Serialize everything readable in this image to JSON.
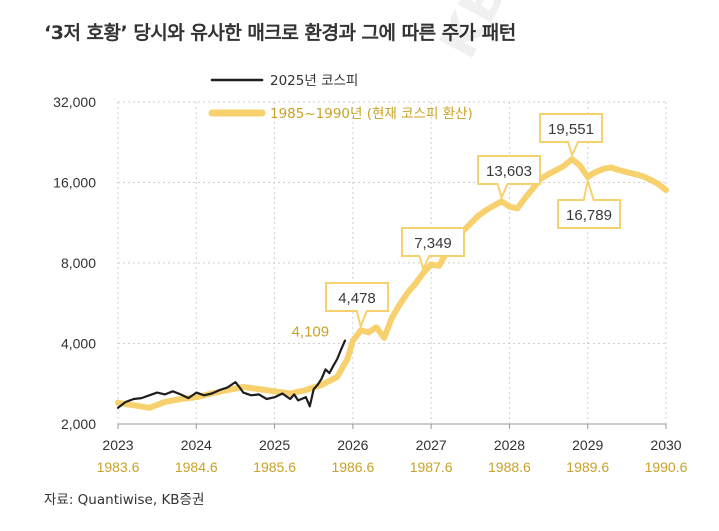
{
  "title": "‘3저 호황’ 당시와 유사한 매크로 환경과 그에 따른 주가 패턴",
  "source": "자료: Quantiwise, KB증권",
  "watermark": "KB증",
  "colors": {
    "kospi2025": "#1e1e1e",
    "kospi1985": "#f7d16e",
    "accent": "#c9a227",
    "grid": "#cfcfcf"
  },
  "chart_data": {
    "type": "line",
    "y_scale": "log",
    "ylim": [
      2000,
      32000
    ],
    "y_ticks": [
      2000,
      4000,
      8000,
      16000,
      32000
    ],
    "y_tick_labels": [
      "2,000",
      "4,000",
      "8,000",
      "16,000",
      "32,000"
    ],
    "xlim": [
      2023,
      2030
    ],
    "x_ticks": [
      2023,
      2024,
      2025,
      2026,
      2027,
      2028,
      2029,
      2030
    ],
    "x_tick_labels": [
      "2023",
      "2024",
      "2025",
      "2026",
      "2027",
      "2028",
      "2029",
      "2030"
    ],
    "x_tick_labels_secondary": [
      "1983.6",
      "1984.6",
      "1985.6",
      "1986.6",
      "1987.6",
      "1988.6",
      "1989.6",
      "1990.6"
    ],
    "legend_position": "top-left",
    "series": [
      {
        "name": "2025년 코스피",
        "x": [
          2023.0,
          2023.1,
          2023.2,
          2023.3,
          2023.4,
          2023.5,
          2023.6,
          2023.7,
          2023.8,
          2023.9,
          2024.0,
          2024.1,
          2024.2,
          2024.3,
          2024.4,
          2024.5,
          2024.55,
          2024.6,
          2024.7,
          2024.8,
          2024.9,
          2025.0,
          2025.1,
          2025.2,
          2025.25,
          2025.3,
          2025.4,
          2025.45,
          2025.5,
          2025.55,
          2025.6,
          2025.65,
          2025.7,
          2025.75,
          2025.8,
          2025.85,
          2025.9
        ],
        "values": [
          2300,
          2420,
          2480,
          2500,
          2560,
          2620,
          2580,
          2650,
          2580,
          2500,
          2620,
          2560,
          2600,
          2680,
          2740,
          2870,
          2750,
          2620,
          2560,
          2580,
          2480,
          2520,
          2600,
          2480,
          2580,
          2450,
          2520,
          2330,
          2700,
          2800,
          2950,
          3200,
          3100,
          3300,
          3500,
          3800,
          4100
        ]
      },
      {
        "name": "1985~1990년 (현재 코스피 환산)",
        "x": [
          2023.0,
          2023.2,
          2023.4,
          2023.6,
          2023.8,
          2024.0,
          2024.2,
          2024.4,
          2024.6,
          2024.8,
          2025.0,
          2025.2,
          2025.4,
          2025.6,
          2025.8,
          2025.93,
          2026.0,
          2026.1,
          2026.2,
          2026.3,
          2026.4,
          2026.5,
          2026.6,
          2026.7,
          2026.8,
          2026.9,
          2027.0,
          2027.1,
          2027.2,
          2027.3,
          2027.4,
          2027.5,
          2027.6,
          2027.7,
          2027.8,
          2027.9,
          2028.0,
          2028.1,
          2028.2,
          2028.3,
          2028.4,
          2028.5,
          2028.6,
          2028.7,
          2028.8,
          2028.9,
          2029.0,
          2029.1,
          2029.2,
          2029.3,
          2029.4,
          2029.5,
          2029.6,
          2029.7,
          2029.8,
          2029.9,
          2030.0
        ],
        "values": [
          2400,
          2350,
          2300,
          2420,
          2480,
          2520,
          2600,
          2680,
          2750,
          2700,
          2650,
          2600,
          2680,
          2800,
          3000,
          3500,
          4100,
          4478,
          4400,
          4600,
          4200,
          5000,
          5600,
          6200,
          6700,
          7349,
          7900,
          7800,
          8800,
          9500,
          10500,
          11200,
          12000,
          12600,
          13100,
          13603,
          13000,
          12800,
          14000,
          15200,
          16500,
          17200,
          17800,
          18500,
          19551,
          18500,
          16789,
          17500,
          18000,
          18200,
          17800,
          17500,
          17200,
          16900,
          16400,
          15800,
          15000
        ]
      }
    ],
    "annotations": [
      {
        "label": "4,478",
        "x": 2026.1,
        "y": 4478,
        "boxed": true
      },
      {
        "label": "4,109",
        "x": 2025.85,
        "y": 4109,
        "boxed": false
      },
      {
        "label": "7,349",
        "x": 2026.9,
        "y": 7349,
        "boxed": true
      },
      {
        "label": "13,603",
        "x": 2027.9,
        "y": 13603,
        "boxed": true
      },
      {
        "label": "19,551",
        "x": 2028.8,
        "y": 19551,
        "boxed": true
      },
      {
        "label": "16,789",
        "x": 2029.0,
        "y": 16789,
        "boxed": true
      }
    ]
  }
}
